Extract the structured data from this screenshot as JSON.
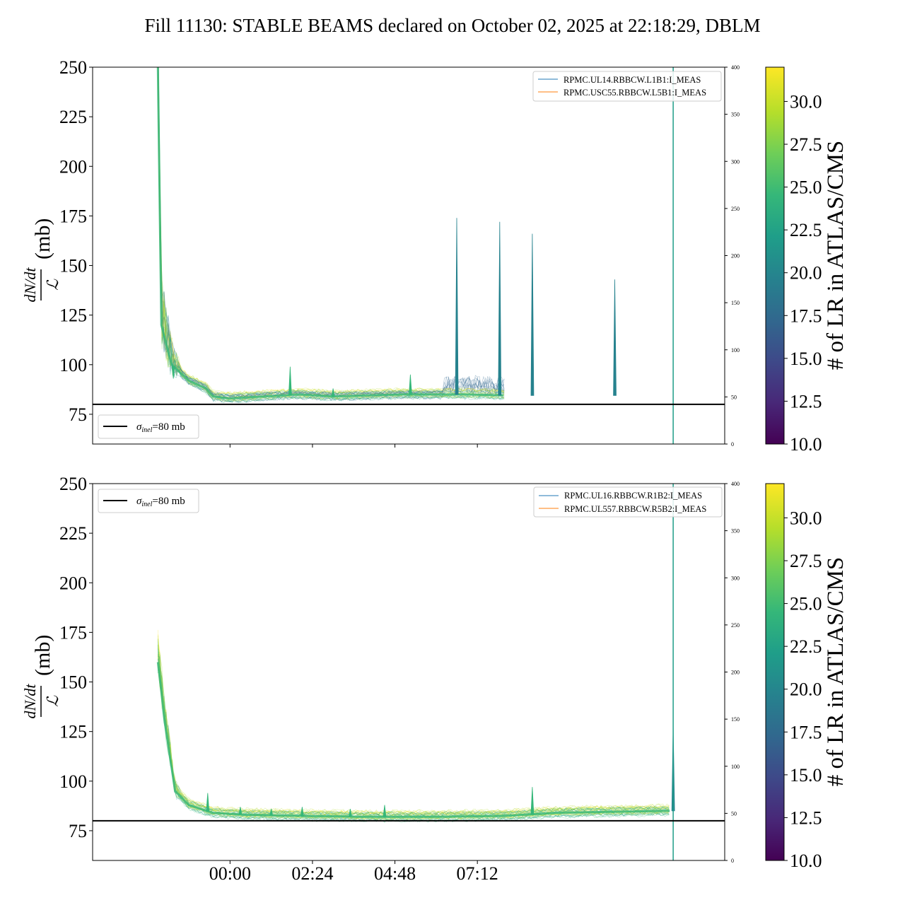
{
  "chart_data": {
    "title": "Fill 11130: STABLE BEAMS declared on October 02, 2025 at 22:18:29, DBLM",
    "type": "line",
    "x_ticks": [
      "00:00",
      "02:24",
      "04:48",
      "07:12"
    ],
    "ylim": [
      60,
      250
    ],
    "y_ticks": [
      75,
      100,
      125,
      150,
      175,
      200,
      225,
      250
    ],
    "y_label": {
      "numerator": "dN/dt",
      "denominator": "ℒ",
      "unit": "(mb)"
    },
    "right_axis": {
      "ylim": [
        0,
        400
      ],
      "ticks": [
        0,
        50,
        100,
        150,
        200,
        250,
        300,
        350,
        400
      ]
    },
    "colorbar": {
      "label": "# of LR in ATLAS/CMS",
      "range": [
        10.0,
        32.0
      ],
      "ticks": [
        "10.0",
        "12.5",
        "15.0",
        "17.5",
        "20.0",
        "22.5",
        "25.0",
        "27.5",
        "30.0"
      ],
      "colormap": [
        "#440154",
        "#482878",
        "#3e4989",
        "#31688e",
        "#26828e",
        "#1f9e89",
        "#35b779",
        "#6ece58",
        "#b5de2b",
        "#fde725"
      ]
    },
    "reference_line": {
      "label_symbol": "σ",
      "label_sub": "inel",
      "label_value": "=80 mb",
      "value": 80,
      "color": "#000000"
    },
    "panels": [
      {
        "legend_lines": [
          {
            "name": "RPMC.UL14.RBBCW.L1B1:I_MEAS",
            "color": "#1f77b4"
          },
          {
            "name": "RPMC.USC55.RBBCW.L5B1:I_MEAS",
            "color": "#ff7f0e"
          }
        ],
        "reference_legend_position": "lower-left",
        "baseline": [
          [
            21.9,
            250
          ],
          [
            22.0,
            120
          ],
          [
            22.3,
            100
          ],
          [
            22.8,
            92
          ],
          [
            23.3,
            88
          ],
          [
            23.5,
            84
          ],
          [
            24.0,
            83
          ],
          [
            25.0,
            84
          ],
          [
            26.0,
            85
          ],
          [
            27.0,
            84
          ],
          [
            28.0,
            84.5
          ],
          [
            29.0,
            85
          ],
          [
            30.0,
            85
          ],
          [
            31.0,
            85
          ],
          [
            32.0,
            84.5
          ]
        ],
        "spikes": [
          [
            22.35,
            93
          ],
          [
            25.75,
            99
          ],
          [
            27.0,
            88
          ],
          [
            29.25,
            95
          ],
          [
            30.6,
            174
          ],
          [
            31.85,
            172
          ],
          [
            32.8,
            166
          ],
          [
            35.2,
            143
          ]
        ],
        "vertical_marker_x": 36.9
      },
      {
        "legend_lines": [
          {
            "name": "RPMC.UL16.RBBCW.R1B2:I_MEAS",
            "color": "#1f77b4"
          },
          {
            "name": "RPMC.UL557.RBBCW.R5B2:I_MEAS",
            "color": "#ff7f0e"
          }
        ],
        "reference_legend_position": "top-left",
        "baseline": [
          [
            21.9,
            160
          ],
          [
            22.1,
            130
          ],
          [
            22.4,
            95
          ],
          [
            22.8,
            88
          ],
          [
            23.5,
            84
          ],
          [
            24.5,
            83
          ],
          [
            26.0,
            82.5
          ],
          [
            28.0,
            82
          ],
          [
            30.0,
            82
          ],
          [
            32.0,
            82.5
          ],
          [
            33.5,
            84
          ],
          [
            35.0,
            84.5
          ],
          [
            36.8,
            85
          ]
        ],
        "spikes": [
          [
            23.35,
            94
          ],
          [
            24.3,
            87
          ],
          [
            25.2,
            86
          ],
          [
            26.1,
            87
          ],
          [
            27.5,
            86
          ],
          [
            28.5,
            88
          ],
          [
            32.8,
            97
          ],
          [
            36.9,
            128
          ]
        ],
        "vertical_marker_x": 36.9
      }
    ]
  }
}
